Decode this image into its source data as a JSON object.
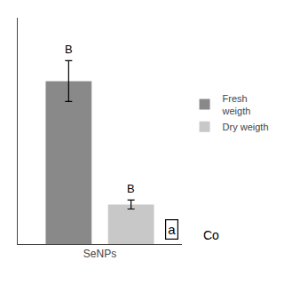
{
  "chart_data": {
    "type": "bar",
    "categories": [
      "SeNPs"
    ],
    "series": [
      {
        "name": "Fresh\nweigth",
        "color": "#898989",
        "values": [
          0.72
        ],
        "errors": [
          0.09
        ],
        "annotations": [
          "B"
        ]
      },
      {
        "name": "Dry weigth",
        "color": "#c8c8c8",
        "values": [
          0.175
        ],
        "errors": [
          0.02
        ],
        "annotations": [
          "B"
        ]
      }
    ],
    "ylim": [
      0,
      1.0
    ],
    "yticks": [],
    "tick_labels": "x",
    "grid": false,
    "legend": "right",
    "annotations": [
      "a",
      "Co"
    ]
  }
}
